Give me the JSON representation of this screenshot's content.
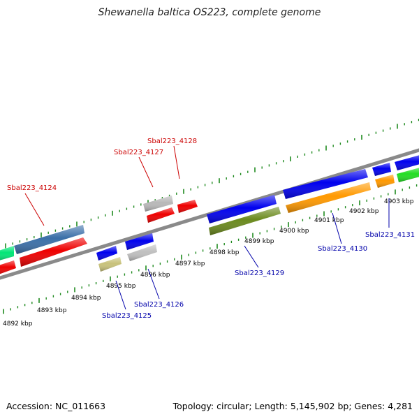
{
  "title": "Shewanella baltica OS223, complete genome",
  "footer": {
    "accession": "Accession: NC_011663",
    "summary": "Topology: circular; Length: 5,145,902 bp; Genes: 4,281"
  },
  "scale": {
    "unit": "kbp",
    "ticks": [
      "4892 kbp",
      "4893 kbp",
      "4894 kbp",
      "4895 kbp",
      "4896 kbp",
      "4897 kbp",
      "4898 kbp",
      "4899 kbp",
      "4900 kbp",
      "4901 kbp",
      "4902 kbp",
      "4903 kbp"
    ]
  },
  "colors": {
    "backbone": "#8a8a8a",
    "tick": "#1f8a1f",
    "forward_label": "#cc0000",
    "reverse_label": "#0000aa",
    "leader_forward": "#cc0000",
    "leader_reverse": "#0000aa"
  },
  "labels": {
    "forward": [
      "Sbal223_4124",
      "Sbal223_4127",
      "Sbal223_4128"
    ],
    "reverse": [
      "Sbal223_4125",
      "Sbal223_4126",
      "Sbal223_4129",
      "Sbal223_4130",
      "Sbal223_4131"
    ]
  }
}
